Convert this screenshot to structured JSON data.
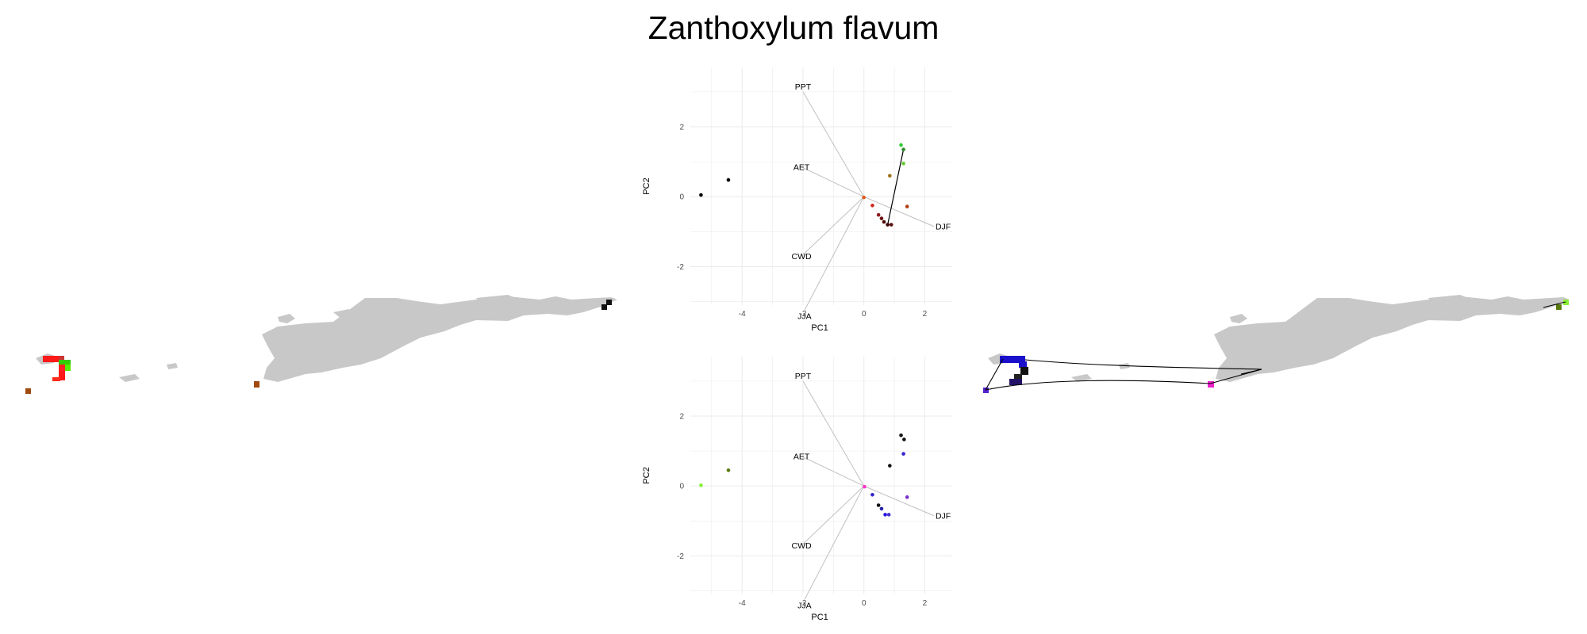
{
  "title": "Zanthoxylum flavum",
  "colors": {
    "land": "#c8c8c8",
    "grid": "#ebebeb",
    "vector": "#c0c0c0",
    "link": "#000000"
  },
  "chart_data": [
    {
      "type": "scatter",
      "panel": "pca-top",
      "xlabel": "PC1",
      "ylabel": "PC2",
      "xticks": [
        -4,
        -2,
        0,
        2
      ],
      "yticks": [
        -2,
        0,
        2
      ],
      "xlim": [
        -5.7,
        2.9
      ],
      "ylim": [
        -3.1,
        3.7
      ],
      "grid": true,
      "vectors": [
        {
          "name": "PPT",
          "x": -2.0,
          "y": 3.0
        },
        {
          "name": "AET",
          "x": -2.05,
          "y": 0.85
        },
        {
          "name": "DJF",
          "x": 2.3,
          "y": -0.85
        },
        {
          "name": "CWD",
          "x": -2.05,
          "y": -1.7
        },
        {
          "name": "JJA",
          "x": -1.95,
          "y": -3.25
        }
      ],
      "points": [
        {
          "x": -5.35,
          "y": 0.05,
          "color": "#000000"
        },
        {
          "x": -4.45,
          "y": 0.48,
          "color": "#000000"
        },
        {
          "x": 0.0,
          "y": -0.02,
          "color": "#e05a1a"
        },
        {
          "x": 0.28,
          "y": -0.25,
          "color": "#cc2a1a"
        },
        {
          "x": 0.48,
          "y": -0.52,
          "color": "#8b1a1a"
        },
        {
          "x": 0.58,
          "y": -0.62,
          "color": "#6b1010"
        },
        {
          "x": 0.66,
          "y": -0.72,
          "color": "#4a0a0a"
        },
        {
          "x": 0.78,
          "y": -0.8,
          "color": "#3a0606"
        },
        {
          "x": 0.9,
          "y": -0.8,
          "color": "#5a1010"
        },
        {
          "x": 0.85,
          "y": 0.6,
          "color": "#a0701a"
        },
        {
          "x": 1.22,
          "y": 1.48,
          "color": "#33cc33"
        },
        {
          "x": 1.3,
          "y": 1.35,
          "color": "#2a8a2a"
        },
        {
          "x": 1.3,
          "y": 0.95,
          "color": "#66cc33"
        },
        {
          "x": 1.42,
          "y": -0.28,
          "color": "#b04010"
        }
      ],
      "links": [
        {
          "x1": 0.78,
          "y1": -0.8,
          "x2": 1.3,
          "y2": 1.35
        }
      ]
    },
    {
      "type": "scatter",
      "panel": "pca-bottom",
      "xlabel": "PC1",
      "ylabel": "PC2",
      "xticks": [
        -4,
        -2,
        0,
        2
      ],
      "yticks": [
        -2,
        0,
        2
      ],
      "xlim": [
        -5.7,
        2.9
      ],
      "ylim": [
        -3.1,
        3.7
      ],
      "grid": true,
      "vectors": [
        {
          "name": "PPT",
          "x": -2.0,
          "y": 3.0
        },
        {
          "name": "AET",
          "x": -2.05,
          "y": 0.85
        },
        {
          "name": "DJF",
          "x": 2.3,
          "y": -0.85
        },
        {
          "name": "CWD",
          "x": -2.05,
          "y": -1.7
        },
        {
          "name": "JJA",
          "x": -1.95,
          "y": -3.25
        }
      ],
      "points": [
        {
          "x": -5.35,
          "y": 0.02,
          "color": "#88ee33"
        },
        {
          "x": -4.45,
          "y": 0.45,
          "color": "#5a7a10"
        },
        {
          "x": 0.02,
          "y": -0.02,
          "color": "#ff33cc"
        },
        {
          "x": 0.28,
          "y": -0.25,
          "color": "#3322cc"
        },
        {
          "x": 0.48,
          "y": -0.55,
          "color": "#111111"
        },
        {
          "x": 0.58,
          "y": -0.65,
          "color": "#2222aa"
        },
        {
          "x": 0.7,
          "y": -0.82,
          "color": "#2211dd"
        },
        {
          "x": 0.82,
          "y": -0.82,
          "color": "#4433cc"
        },
        {
          "x": 0.85,
          "y": 0.58,
          "color": "#111111"
        },
        {
          "x": 1.22,
          "y": 1.45,
          "color": "#111111"
        },
        {
          "x": 1.32,
          "y": 1.33,
          "color": "#111111"
        },
        {
          "x": 1.3,
          "y": 0.92,
          "color": "#3322cc"
        },
        {
          "x": 1.42,
          "y": -0.32,
          "color": "#7733cc"
        }
      ],
      "links": []
    }
  ]
}
